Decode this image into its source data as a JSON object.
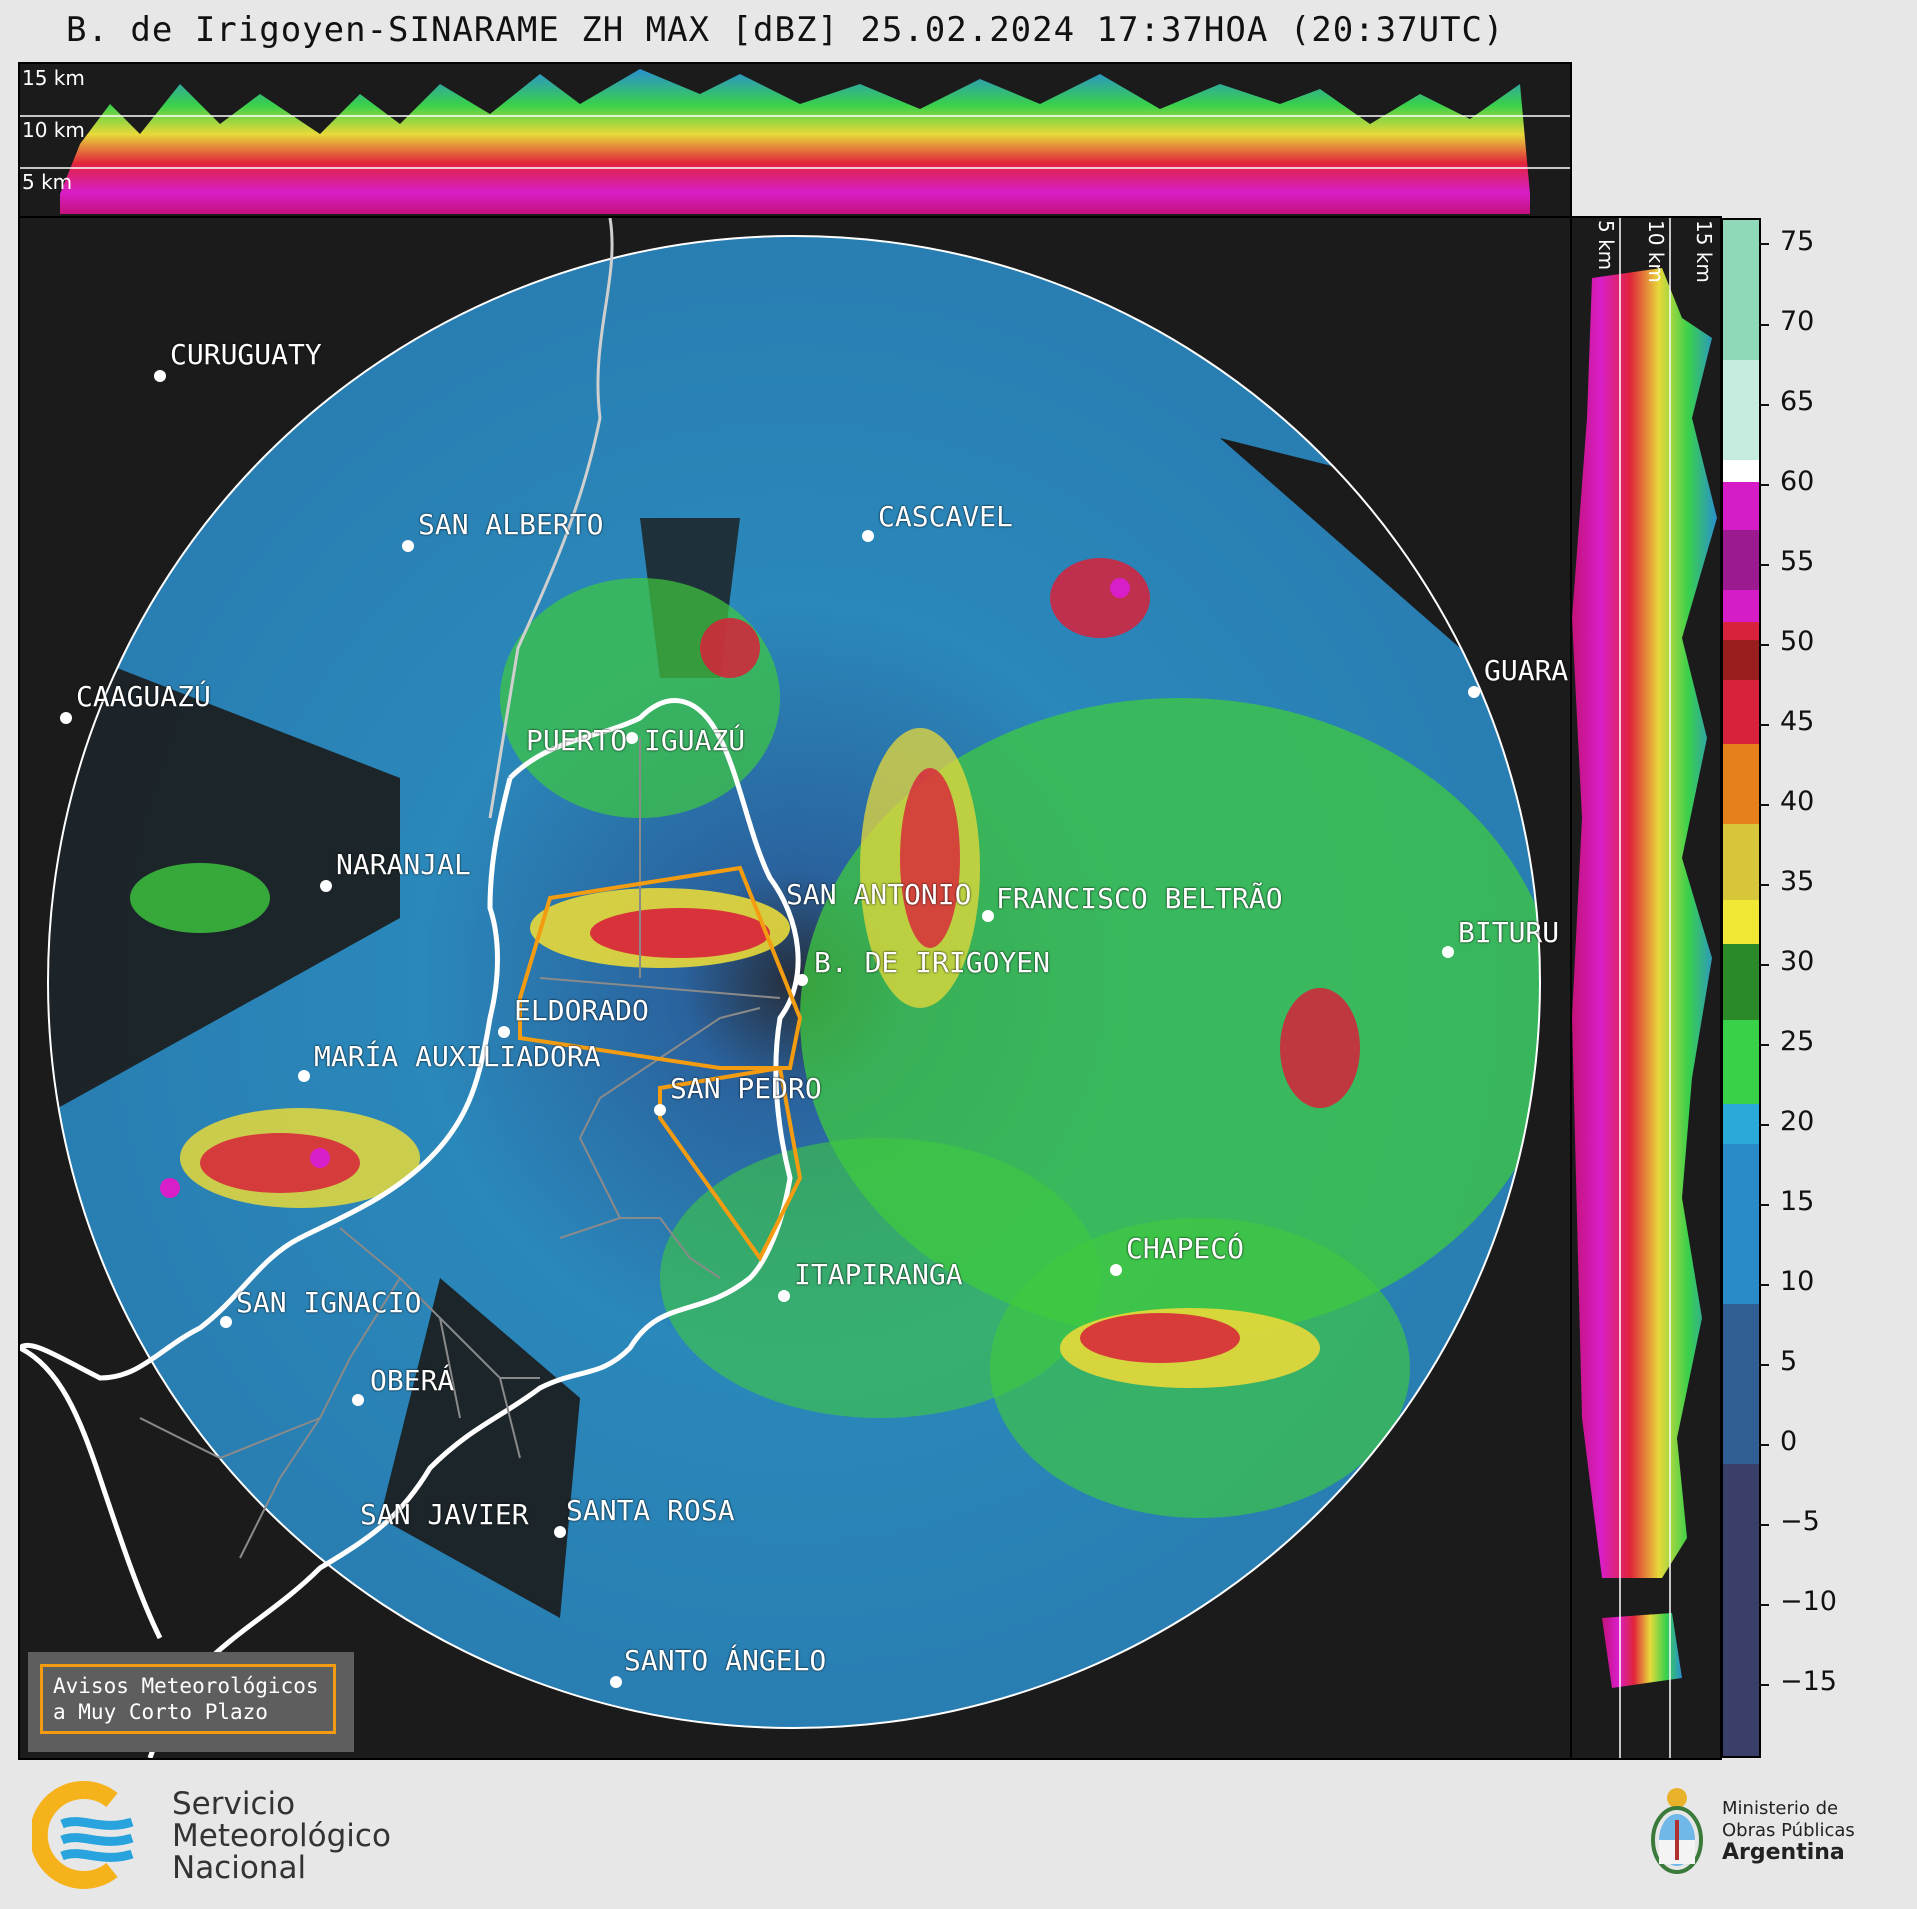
{
  "title": "B. de Irigoyen-SINARAME ZH MAX [dBZ] 25.02.2024 17:37HOA (20:37UTC)",
  "top_panel": {
    "height_labels": [
      "15 km",
      "10 km",
      "5 km"
    ]
  },
  "side_panel": {
    "height_labels": [
      "5 km",
      "10 km",
      "15 km"
    ]
  },
  "colorbar": {
    "unit": "dBZ",
    "ticks": [
      "75",
      "70",
      "65",
      "60",
      "55",
      "50",
      "45",
      "40",
      "35",
      "30",
      "25",
      "20",
      "15",
      "10",
      "5",
      "0",
      "−5",
      "−10",
      "−15"
    ]
  },
  "cities": [
    {
      "id": "curuguaty",
      "name": "CURUGUATY"
    },
    {
      "id": "san-alberto",
      "name": "SAN ALBERTO"
    },
    {
      "id": "cascavel",
      "name": "CASCAVEL"
    },
    {
      "id": "caaguazu",
      "name": "CAAGUAZÚ"
    },
    {
      "id": "guarapuava",
      "name": "GUARA"
    },
    {
      "id": "puerto-iguazu",
      "name": "PUERTO IGUAZÚ"
    },
    {
      "id": "naranjal",
      "name": "NARANJAL"
    },
    {
      "id": "san-antonio",
      "name": "SAN ANTONIO"
    },
    {
      "id": "francisco-beltrao",
      "name": "FRANCISCO BELTRÃO"
    },
    {
      "id": "b-de-irigoyen",
      "name": "B. DE IRIGOYEN"
    },
    {
      "id": "bituruna",
      "name": "BITURU"
    },
    {
      "id": "eldorado",
      "name": "ELDORADO"
    },
    {
      "id": "maria-auxiliadora",
      "name": "MARÍA AUXILIADORA"
    },
    {
      "id": "san-pedro",
      "name": "SAN PEDRO"
    },
    {
      "id": "itapiranga",
      "name": "ITAPIRANGA"
    },
    {
      "id": "chapeco",
      "name": "CHAPECÓ"
    },
    {
      "id": "san-ignacio",
      "name": "SAN IGNACIO"
    },
    {
      "id": "obera",
      "name": "OBERÁ"
    },
    {
      "id": "san-javier",
      "name": "SAN JAVIER"
    },
    {
      "id": "santa-rosa",
      "name": "SANTA ROSA"
    },
    {
      "id": "santo-angelo",
      "name": "SANTO ÁNGELO"
    }
  ],
  "warning_box": {
    "line1": "Avisos Meteorológicos",
    "line2": "a Muy Corto Plazo"
  },
  "footer": {
    "smn_line1": "Servicio",
    "smn_line2": "Meteorológico",
    "smn_line3": "Nacional",
    "ministry_line1": "Ministerio de",
    "ministry_line2": "Obras Públicas",
    "ministry_line3": "Argentina"
  },
  "colors": {
    "panel_bg": "#1b1b1b",
    "warning_outline": "#f39c12",
    "logo_yellow": "#f6b21a",
    "logo_blue": "#29a3dd"
  }
}
